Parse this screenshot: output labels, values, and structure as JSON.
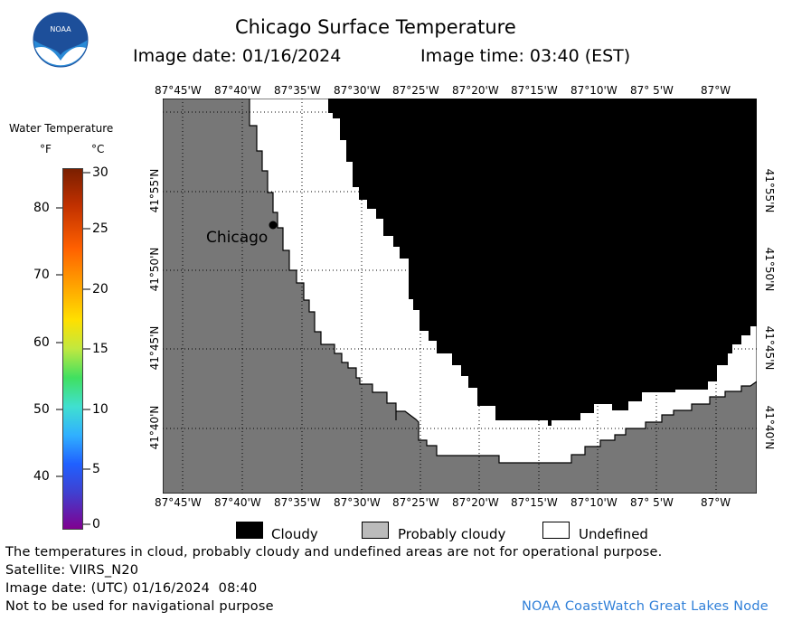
{
  "header": {
    "title": "Chicago Surface Temperature",
    "image_date": "Image date: 01/16/2024",
    "image_time": "Image time: 03:40 (EST)",
    "logo_text": "NOAA"
  },
  "colorbar": {
    "title": "Water Temperature",
    "unit_f": "°F",
    "unit_c": "°C",
    "f_ticks": [
      "80",
      "70",
      "60",
      "50",
      "40"
    ],
    "c_ticks": [
      "30",
      "25",
      "20",
      "15",
      "10",
      "5",
      "0"
    ]
  },
  "map": {
    "lon_labels": [
      "87°45'W",
      "87°40'W",
      "87°35'W",
      "87°30'W",
      "87°25'W",
      "87°20'W",
      "87°15'W",
      "87°10'W",
      "87° 5'W",
      "87°W"
    ],
    "lat_labels": [
      "41°55'N",
      "41°50'N",
      "41°45'N",
      "41°40'N"
    ],
    "city_label": "Chicago",
    "colors": {
      "land": "#777777",
      "cloudy": "#000000",
      "undefined": "#ffffff",
      "probably_cloudy": "#bbbbbb"
    }
  },
  "legend": {
    "cloudy": "Cloudy",
    "probably_cloudy": "Probably cloudy",
    "undefined": "Undefined"
  },
  "footer": {
    "note": "The temperatures in cloud, probably cloudy and undefined areas are not for operational purpose.",
    "satellite": "Satellite: VIIRS_N20",
    "image_date_utc": "Image date: (UTC) 01/16/2024  08:40",
    "nav_warning": "Not to be used for navigational purpose",
    "credit": "NOAA CoastWatch Great Lakes Node"
  }
}
